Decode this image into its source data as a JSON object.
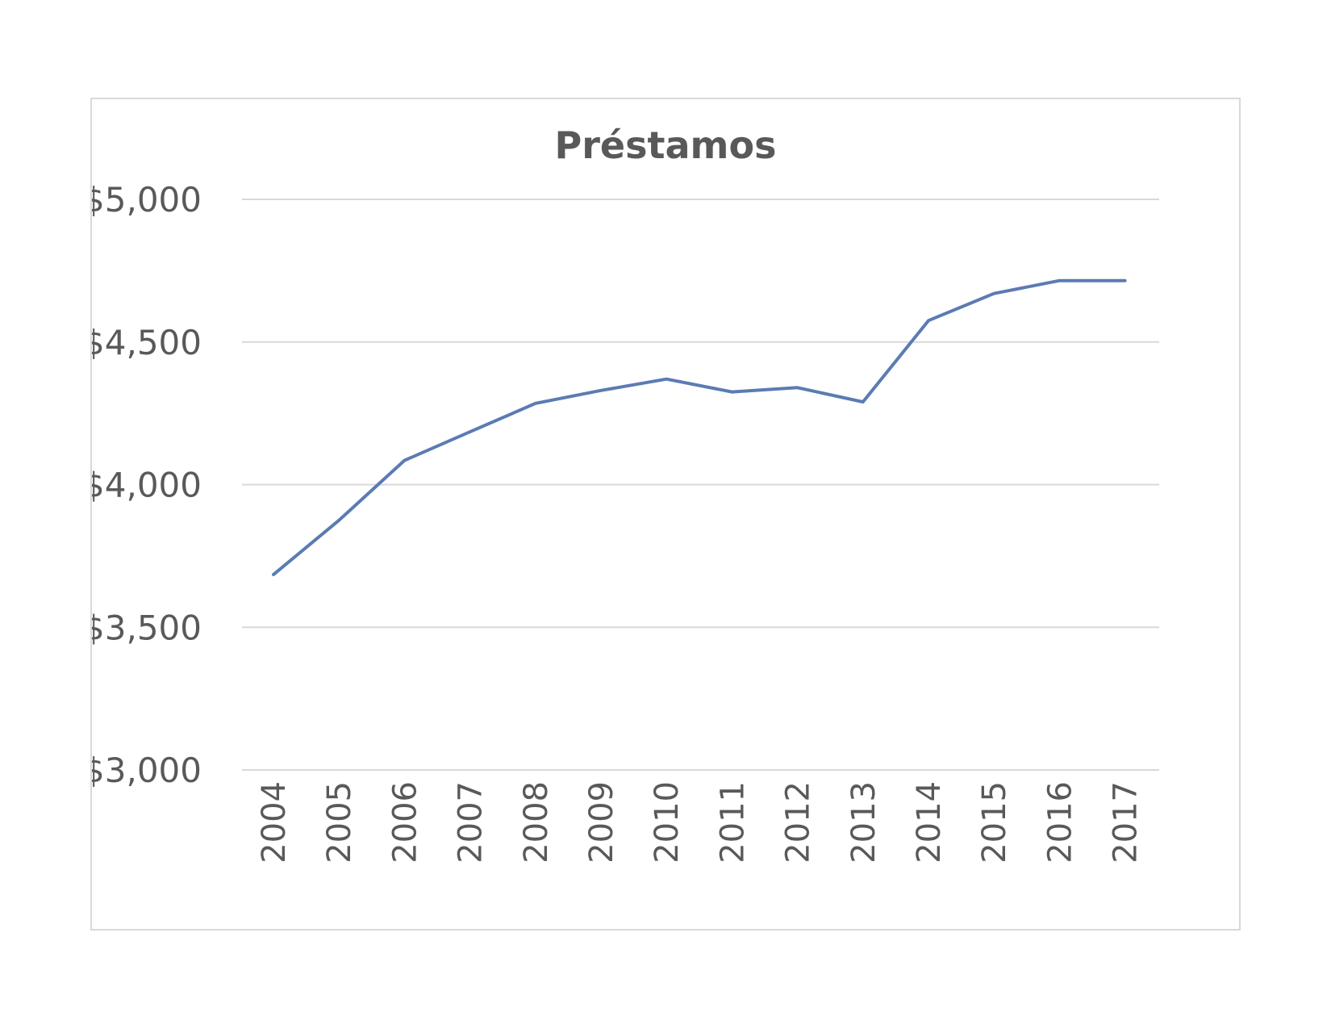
{
  "chart_data": {
    "type": "line",
    "title": "Préstamos",
    "xlabel": "",
    "ylabel": "",
    "categories": [
      "2004",
      "2005",
      "2006",
      "2007",
      "2008",
      "2009",
      "2010",
      "2011",
      "2012",
      "2013",
      "2014",
      "2015",
      "2016",
      "2017"
    ],
    "series": [
      {
        "values": [
          3685,
          3875,
          4085,
          4185,
          4285,
          4330,
          4370,
          4325,
          4340,
          4290,
          4575,
          4670,
          4715,
          4715
        ],
        "color": "#5b7bb3"
      }
    ],
    "ylim": [
      3000,
      5000
    ],
    "yticks": [
      {
        "value": 5000,
        "label": "$5,000"
      },
      {
        "value": 4500,
        "label": "$4,500"
      },
      {
        "value": 4000,
        "label": "$4,000"
      },
      {
        "value": 3500,
        "label": "$3,500"
      },
      {
        "value": 3000,
        "label": "$3,000"
      }
    ],
    "grid": "horizontal",
    "legend": "none"
  }
}
